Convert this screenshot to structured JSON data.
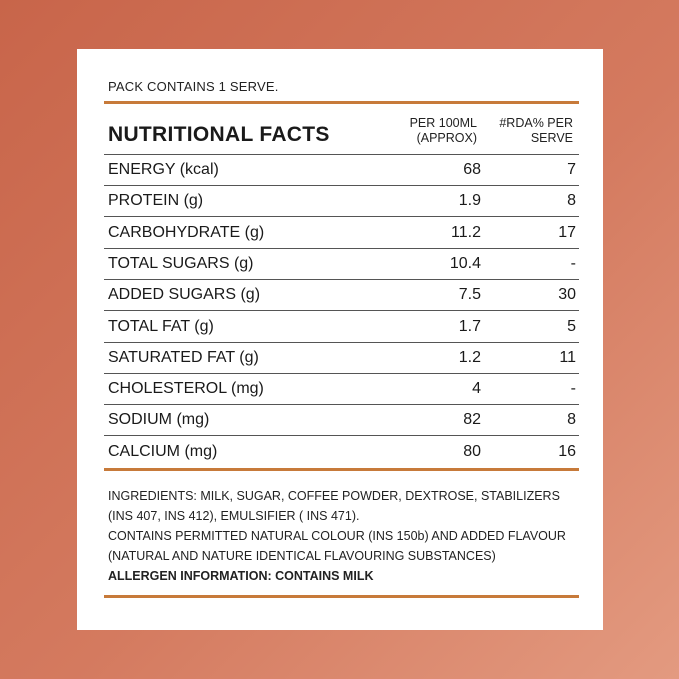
{
  "pack_text": "PACK CONTAINS 1 SERVE.",
  "table": {
    "title": "NUTRITIONAL FACTS",
    "col1": [
      "PER 100ML",
      "(APPROX)"
    ],
    "col2": [
      "#RDA% PER",
      "SERVE"
    ],
    "rows": [
      {
        "name": "ENERGY (kcal)",
        "per100": "68",
        "rda": "7"
      },
      {
        "name": "PROTEIN (g)",
        "per100": "1.9",
        "rda": "8"
      },
      {
        "name": "CARBOHYDRATE (g)",
        "per100": "11.2",
        "rda": "17"
      },
      {
        "name": "TOTAL SUGARS (g)",
        "per100": "10.4",
        "rda": "-"
      },
      {
        "name": "ADDED SUGARS (g)",
        "per100": "7.5",
        "rda": "30"
      },
      {
        "name": "TOTAL FAT (g)",
        "per100": "1.7",
        "rda": "5"
      },
      {
        "name": "SATURATED FAT (g)",
        "per100": "1.2",
        "rda": "11"
      },
      {
        "name": "CHOLESTEROL (mg)",
        "per100": "4",
        "rda": "-"
      },
      {
        "name": "SODIUM (mg)",
        "per100": "82",
        "rda": "8"
      },
      {
        "name": "CALCIUM (mg)",
        "per100": "80",
        "rda": "16"
      }
    ]
  },
  "ingredients": {
    "lines": [
      "INGREDIENTS: MILK, SUGAR, COFFEE POWDER, DEXTROSE, STABILIZERS",
      "(INS 407, INS 412), EMULSIFIER ( INS 471).",
      "CONTAINS PERMITTED NATURAL COLOUR (INS 150b) AND ADDED FLAVOUR",
      "(NATURAL AND NATURE IDENTICAL FLAVOURING SUBSTANCES)"
    ],
    "allergen": "ALLERGEN INFORMATION: CONTAINS MILK"
  },
  "colors": {
    "background": "#c8654a",
    "accent_rule": "#c77a3a",
    "card": "#ffffff"
  }
}
